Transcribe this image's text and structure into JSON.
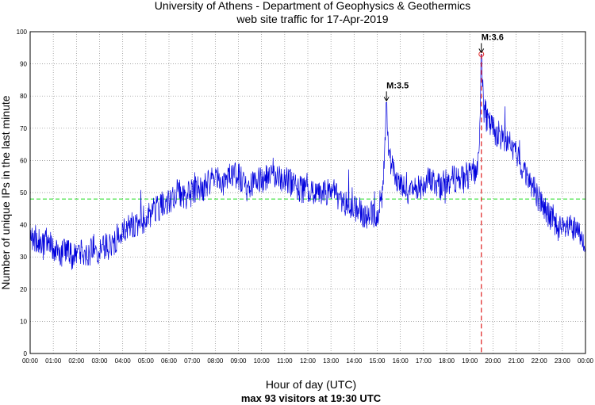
{
  "chart_data": {
    "type": "line",
    "title_line1": "University of Athens - Department of Geophysics & Geothermics",
    "title_line2": "web site traffic for 17-Apr-2019",
    "xlabel": "Hour of day (UTC)",
    "xlabel_sub": "max 93 visitors at 19:30 UTC",
    "ylabel": "Number of unique IPs in the last minute",
    "xlim_hours": [
      0,
      24
    ],
    "ylim": [
      0,
      100
    ],
    "y_ticks": [
      0,
      10,
      20,
      30,
      40,
      50,
      60,
      70,
      80,
      90,
      100
    ],
    "x_tick_labels": [
      "00:00",
      "01:00",
      "02:00",
      "03:00",
      "04:00",
      "05:00",
      "06:00",
      "07:00",
      "08:00",
      "09:00",
      "10:00",
      "11:00",
      "12:00",
      "13:00",
      "14:00",
      "15:00",
      "16:00",
      "17:00",
      "18:00",
      "19:00",
      "20:00",
      "21:00",
      "22:00",
      "23:00",
      "00:00"
    ],
    "grid": true,
    "mean_line": {
      "value": 48,
      "color": "#22dd22"
    },
    "max_marker": {
      "hour": 19.5,
      "value": 93,
      "color": "#e02020"
    },
    "series": [
      {
        "name": "visitors",
        "color": "#0000dd",
        "points": [
          {
            "h": 0.0,
            "v": 34
          },
          {
            "h": 0.25,
            "v": 36
          },
          {
            "h": 0.5,
            "v": 33
          },
          {
            "h": 0.75,
            "v": 35
          },
          {
            "h": 1.0,
            "v": 33
          },
          {
            "h": 1.25,
            "v": 31
          },
          {
            "h": 1.5,
            "v": 32
          },
          {
            "h": 1.75,
            "v": 30
          },
          {
            "h": 2.0,
            "v": 31
          },
          {
            "h": 2.25,
            "v": 32
          },
          {
            "h": 2.5,
            "v": 31
          },
          {
            "h": 2.75,
            "v": 33
          },
          {
            "h": 3.0,
            "v": 32
          },
          {
            "h": 3.25,
            "v": 33
          },
          {
            "h": 3.5,
            "v": 34
          },
          {
            "h": 3.75,
            "v": 36
          },
          {
            "h": 4.0,
            "v": 37
          },
          {
            "h": 4.25,
            "v": 39
          },
          {
            "h": 4.5,
            "v": 40
          },
          {
            "h": 4.75,
            "v": 41
          },
          {
            "h": 5.0,
            "v": 42
          },
          {
            "h": 5.25,
            "v": 44
          },
          {
            "h": 5.5,
            "v": 45
          },
          {
            "h": 5.75,
            "v": 47
          },
          {
            "h": 6.0,
            "v": 48
          },
          {
            "h": 6.25,
            "v": 49
          },
          {
            "h": 6.5,
            "v": 50
          },
          {
            "h": 6.75,
            "v": 49
          },
          {
            "h": 7.0,
            "v": 50
          },
          {
            "h": 7.25,
            "v": 51
          },
          {
            "h": 7.5,
            "v": 52
          },
          {
            "h": 7.75,
            "v": 53
          },
          {
            "h": 8.0,
            "v": 54
          },
          {
            "h": 8.25,
            "v": 53
          },
          {
            "h": 8.5,
            "v": 54
          },
          {
            "h": 8.75,
            "v": 55
          },
          {
            "h": 9.0,
            "v": 55
          },
          {
            "h": 9.25,
            "v": 54
          },
          {
            "h": 9.5,
            "v": 53
          },
          {
            "h": 9.75,
            "v": 54
          },
          {
            "h": 10.0,
            "v": 54
          },
          {
            "h": 10.25,
            "v": 55
          },
          {
            "h": 10.5,
            "v": 56
          },
          {
            "h": 10.75,
            "v": 55
          },
          {
            "h": 11.0,
            "v": 54
          },
          {
            "h": 11.25,
            "v": 53
          },
          {
            "h": 11.5,
            "v": 52
          },
          {
            "h": 11.75,
            "v": 51
          },
          {
            "h": 12.0,
            "v": 50
          },
          {
            "h": 12.25,
            "v": 50
          },
          {
            "h": 12.5,
            "v": 49
          },
          {
            "h": 12.75,
            "v": 50
          },
          {
            "h": 13.0,
            "v": 51
          },
          {
            "h": 13.25,
            "v": 49
          },
          {
            "h": 13.5,
            "v": 48
          },
          {
            "h": 13.75,
            "v": 46
          },
          {
            "h": 14.0,
            "v": 45
          },
          {
            "h": 14.25,
            "v": 44
          },
          {
            "h": 14.5,
            "v": 42
          },
          {
            "h": 14.75,
            "v": 43
          },
          {
            "h": 15.0,
            "v": 44
          },
          {
            "h": 15.2,
            "v": 48
          },
          {
            "h": 15.3,
            "v": 60
          },
          {
            "h": 15.4,
            "v": 76
          },
          {
            "h": 15.5,
            "v": 62
          },
          {
            "h": 15.75,
            "v": 55
          },
          {
            "h": 16.0,
            "v": 52
          },
          {
            "h": 16.25,
            "v": 50
          },
          {
            "h": 16.5,
            "v": 51
          },
          {
            "h": 16.75,
            "v": 52
          },
          {
            "h": 17.0,
            "v": 53
          },
          {
            "h": 17.25,
            "v": 54
          },
          {
            "h": 17.5,
            "v": 53
          },
          {
            "h": 17.75,
            "v": 52
          },
          {
            "h": 18.0,
            "v": 53
          },
          {
            "h": 18.25,
            "v": 54
          },
          {
            "h": 18.5,
            "v": 55
          },
          {
            "h": 18.75,
            "v": 54
          },
          {
            "h": 19.0,
            "v": 55
          },
          {
            "h": 19.25,
            "v": 57
          },
          {
            "h": 19.4,
            "v": 60
          },
          {
            "h": 19.5,
            "v": 93
          },
          {
            "h": 19.6,
            "v": 78
          },
          {
            "h": 19.75,
            "v": 72
          },
          {
            "h": 20.0,
            "v": 70
          },
          {
            "h": 20.25,
            "v": 68
          },
          {
            "h": 20.5,
            "v": 67
          },
          {
            "h": 20.75,
            "v": 65
          },
          {
            "h": 21.0,
            "v": 62
          },
          {
            "h": 21.25,
            "v": 58
          },
          {
            "h": 21.5,
            "v": 55
          },
          {
            "h": 21.75,
            "v": 52
          },
          {
            "h": 22.0,
            "v": 48
          },
          {
            "h": 22.25,
            "v": 45
          },
          {
            "h": 22.5,
            "v": 42
          },
          {
            "h": 22.75,
            "v": 40
          },
          {
            "h": 23.0,
            "v": 38
          },
          {
            "h": 23.25,
            "v": 39
          },
          {
            "h": 23.5,
            "v": 38
          },
          {
            "h": 23.75,
            "v": 37
          },
          {
            "h": 24.0,
            "v": 36
          }
        ]
      }
    ],
    "annotations": [
      {
        "hour": 15.4,
        "value": 78,
        "label": "M:3.5"
      },
      {
        "hour": 19.5,
        "value": 93,
        "label": "M:3.6"
      }
    ]
  }
}
